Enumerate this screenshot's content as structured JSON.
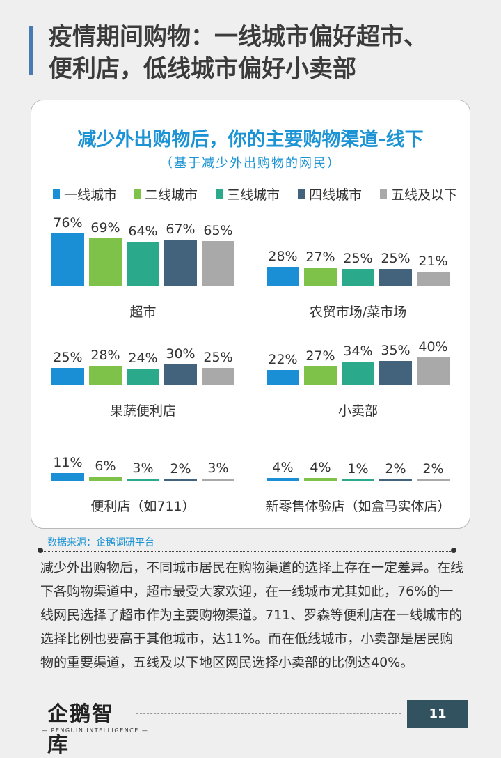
{
  "headline": {
    "line1": "疫情期间购物：一线城市偏好超市、",
    "line2": "便利店，低线城市偏好小卖部"
  },
  "colors": {
    "tier1": "#1a8fd6",
    "tier2": "#7ec24a",
    "tier3": "#2aaa8a",
    "tier4": "#43627c",
    "tier5": "#a9a9a9",
    "accent_blue": "#1b93d4"
  },
  "chart_data": {
    "type": "bar",
    "title": "减少外出购物后，你的主要购物渠道-线下",
    "subtitle": "（基于减少外出购物的网民）",
    "legend": [
      "一线城市",
      "二线城市",
      "三线城市",
      "四线城市",
      "五线及以下"
    ],
    "legend_position": "top",
    "unit": "%",
    "panels": [
      {
        "category": "超市",
        "values": [
          76,
          69,
          64,
          67,
          65
        ]
      },
      {
        "category": "农贸市场/菜市场",
        "values": [
          28,
          27,
          25,
          25,
          21
        ]
      },
      {
        "category": "果蔬便利店",
        "values": [
          25,
          28,
          24,
          30,
          25
        ]
      },
      {
        "category": "小卖部",
        "values": [
          22,
          27,
          34,
          35,
          40
        ]
      },
      {
        "category": "便利店（如711）",
        "values": [
          11,
          6,
          3,
          2,
          3
        ]
      },
      {
        "category": "新零售体验店（如盒马实体店）",
        "values": [
          4,
          4,
          1,
          2,
          2
        ]
      }
    ]
  },
  "source": "数据来源：企鹅调研平台",
  "body_text": "减少外出购物后，不同城市居民在购物渠道的选择上存在一定差异。在线下各购物渠道中，超市最受大家欢迎，在一线城市尤其如此，76%的一线网民选择了超市作为主要购物渠道。711、罗森等便利店在一线城市的选择比例也要高于其他城市，达11%。而在低线城市，小卖部是居民购物的重要渠道，五线及以下地区网民选择小卖部的比例达40%。",
  "logo": {
    "main": "企鹅智库",
    "sub": "— PENGUIN  INTELLIGENCE —"
  },
  "page_number": "11"
}
